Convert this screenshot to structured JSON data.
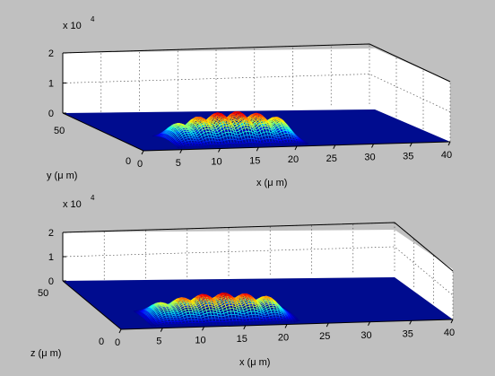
{
  "chart_data": [
    {
      "type": "surface",
      "exponent_label": "x 10",
      "exponent_power": "4",
      "zlim": [
        0,
        2
      ],
      "z_ticks": [
        "0",
        "1",
        "2"
      ],
      "x_ticks": [
        "0",
        "5",
        "10",
        "15",
        "20",
        "25",
        "30",
        "35",
        "40"
      ],
      "xlim": [
        0,
        40
      ],
      "xlabel": "x (μ m)",
      "y_ticks": [
        "0",
        "50"
      ],
      "ylim": [
        0,
        60
      ],
      "ylabel": "y (μ m)",
      "grid": true,
      "colormap": "jet",
      "floor_color": "#000c8f",
      "surface": {
        "peak_count": 6,
        "peak_x_centers": [
          6.7,
          9.3,
          11.9,
          14.5,
          17.1,
          19.7
        ],
        "peak_heights": [
          0.82,
          0.86,
          0.88,
          0.9,
          0.92,
          0.95
        ],
        "x_extent": [
          5,
          22
        ],
        "y_extent": [
          2,
          22
        ]
      }
    },
    {
      "type": "surface",
      "exponent_label": "x 10",
      "exponent_power": "4",
      "zlim": [
        0,
        2
      ],
      "z_ticks": [
        "0",
        "1",
        "2"
      ],
      "x_ticks": [
        "0",
        "5",
        "10",
        "15",
        "20",
        "25",
        "30",
        "35",
        "40"
      ],
      "xlim": [
        0,
        40
      ],
      "xlabel": "x (μ m)",
      "y_ticks": [
        "0",
        "50"
      ],
      "ylim": [
        0,
        60
      ],
      "ylabel": "z (μ m)",
      "grid": true,
      "colormap": "jet",
      "floor_color": "#000c8f",
      "surface": {
        "peak_count": 6,
        "peak_x_centers": [
          6.2,
          8.8,
          11.4,
          14.0,
          16.6,
          19.2
        ],
        "peak_heights": [
          0.78,
          0.82,
          0.86,
          0.9,
          0.93,
          0.96
        ],
        "x_extent": [
          4,
          22
        ],
        "y_extent": [
          2,
          22
        ]
      }
    }
  ]
}
